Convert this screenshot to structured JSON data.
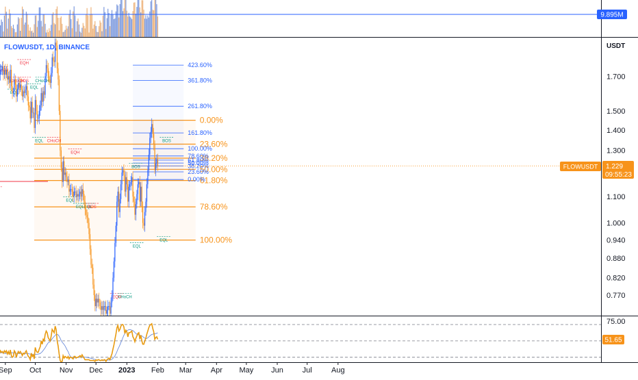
{
  "chart_data": {
    "type": "line",
    "symbol": {
      "pair": "FLOWUSDT",
      "interval": "1D",
      "exchange": "BINANCE"
    },
    "price_axis": {
      "unit": "USDT",
      "scale": "log",
      "ticks": [
        "1.700",
        "1.500",
        "1.400",
        "1.300",
        "1.200",
        "1.100",
        "1.000",
        "0.940",
        "0.880",
        "0.820",
        "0.770"
      ],
      "ylim": [
        0.715,
        1.95
      ]
    },
    "x_axis_labels": [
      "Sep",
      "Oct",
      "Nov",
      "Dec",
      "2023",
      "Feb",
      "Mar",
      "Apr",
      "May",
      "Jun",
      "Jul",
      "Aug"
    ],
    "last_price": {
      "symbol": "FLOWUSDT",
      "value": "1.229",
      "countdown": "09:55:23",
      "raw": 1.229
    },
    "volume": {
      "last_label": "9.895M"
    },
    "price_series": {
      "start_date": "2022-08-17",
      "close": [
        2.05,
        1.97,
        1.83,
        1.79,
        1.83,
        1.88,
        1.77,
        1.7,
        1.69,
        1.71,
        1.74,
        1.74,
        1.76,
        1.71,
        1.74,
        1.71,
        1.74,
        1.68,
        1.7,
        1.66,
        1.74,
        1.64,
        1.6,
        1.61,
        1.68,
        1.65,
        1.58,
        1.62,
        1.66,
        1.63,
        1.65,
        1.62,
        1.58,
        1.61,
        1.6,
        1.62,
        1.64,
        1.58,
        1.53,
        1.52,
        1.46,
        1.55,
        1.49,
        1.49,
        1.41,
        1.56,
        1.5,
        1.46,
        1.46,
        1.5,
        1.53,
        1.6,
        1.55,
        1.61,
        1.59,
        1.7,
        1.77,
        1.75,
        1.7,
        1.68,
        1.66,
        1.72,
        1.82,
        1.8,
        1.79,
        1.92,
        1.9,
        1.75,
        1.68,
        1.5,
        1.3,
        1.22,
        1.16,
        1.25,
        1.19,
        1.2,
        1.18,
        1.16,
        1.17,
        1.12,
        1.13,
        1.13,
        1.12,
        1.1,
        1.12,
        1.12,
        1.1,
        1.11,
        1.1,
        1.11,
        1.12,
        1.1,
        1.13,
        1.11,
        1.08,
        1.05,
        1.03,
        1.02,
        1.0,
        0.96,
        0.91,
        0.86,
        0.85,
        0.8,
        0.77,
        0.74,
        0.76,
        0.75,
        0.76,
        0.75,
        0.74,
        0.73,
        0.74,
        0.73,
        0.74,
        0.74,
        0.72,
        0.73,
        0.74,
        0.74,
        0.72,
        0.75,
        0.77,
        0.82,
        0.87,
        0.93,
        0.99,
        1.08,
        1.12,
        1.04,
        1.09,
        1.15,
        1.2,
        1.21,
        1.19,
        1.12,
        1.18,
        1.15,
        1.08,
        1.14,
        1.15,
        1.16,
        1.18,
        1.1,
        1.08,
        1.03,
        1.07,
        1.11,
        1.15,
        1.16,
        1.08,
        1.14,
        1.06,
        1.0,
        0.99,
        1.04,
        1.08,
        1.15,
        1.21,
        1.28,
        1.36,
        1.39,
        1.43,
        1.38,
        1.33,
        1.21,
        1.24,
        1.26,
        1.23
      ]
    },
    "rsi": {
      "ticks": [
        "75.00",
        "51.65"
      ],
      "last_value": "51.65",
      "levels": [
        70,
        50,
        30
      ],
      "ylim": [
        24,
        80
      ],
      "values": [
        48,
        42,
        30,
        30,
        35,
        38,
        32,
        31,
        32,
        34,
        38,
        36,
        37,
        35,
        38,
        36,
        38,
        34,
        37,
        33,
        39,
        32,
        30,
        31,
        38,
        36,
        30,
        34,
        37,
        35,
        37,
        35,
        32,
        35,
        34,
        36,
        38,
        34,
        31,
        30,
        27,
        35,
        31,
        33,
        28,
        42,
        38,
        36,
        36,
        40,
        43,
        50,
        46,
        52,
        50,
        58,
        62,
        60,
        54,
        52,
        50,
        56,
        64,
        62,
        60,
        68,
        64,
        50,
        44,
        34,
        26,
        24,
        25,
        32,
        29,
        31,
        30,
        29,
        31,
        28,
        30,
        30,
        29,
        28,
        31,
        31,
        29,
        30,
        30,
        31,
        32,
        30,
        33,
        31,
        29,
        27,
        27,
        27,
        27,
        27,
        26,
        26,
        26,
        26,
        26,
        25,
        27,
        26,
        27,
        27,
        26,
        26,
        27,
        26,
        27,
        27,
        25,
        27,
        28,
        29,
        27,
        31,
        34,
        40,
        45,
        52,
        58,
        66,
        69,
        62,
        64,
        68,
        70,
        70,
        67,
        59,
        63,
        61,
        55,
        60,
        60,
        61,
        62,
        55,
        53,
        49,
        53,
        56,
        59,
        60,
        52,
        57,
        50,
        46,
        46,
        50,
        53,
        58,
        62,
        66,
        69,
        70,
        71,
        65,
        61,
        52,
        54,
        55,
        52
      ]
    },
    "fib_large": {
      "start": "2022-09-30",
      "end": "2023-03-11",
      "levels": [
        {
          "label": "0.00%",
          "price": 1.45
        },
        {
          "label": "23.60%",
          "price": 1.33
        },
        {
          "label": "38.20%",
          "price": 1.264
        },
        {
          "label": "50.00%",
          "price": 1.214
        },
        {
          "label": "61.80%",
          "price": 1.166
        },
        {
          "label": "78.60%",
          "price": 1.06
        },
        {
          "label": "100.00%",
          "price": 0.94
        }
      ]
    },
    "fib_small": {
      "start": "2023-01-07",
      "end": "2023-02-27",
      "levels": [
        {
          "label": "423.60%",
          "price": 1.77
        },
        {
          "label": "361.80%",
          "price": 1.675
        },
        {
          "label": "261.80%",
          "price": 1.525
        },
        {
          "label": "161.80%",
          "price": 1.385
        },
        {
          "label": "100.00%",
          "price": 1.308
        },
        {
          "label": "78.60%",
          "price": 1.274
        },
        {
          "label": "61.80%",
          "price": 1.255
        },
        {
          "label": "50.00%",
          "price": 1.242
        },
        {
          "label": "38.20%",
          "price": 1.229
        },
        {
          "label": "23.60%",
          "price": 1.203
        },
        {
          "label": "0.00%",
          "price": 1.17
        }
      ]
    },
    "structure_labels": [
      {
        "text": "EQL",
        "date": "2022-08-22",
        "price": 1.73,
        "color": "#089981"
      },
      {
        "text": "CHoCH",
        "date": "2022-08-28",
        "price": 1.73,
        "color": "#f23645"
      },
      {
        "text": "EQH",
        "date": "2022-09-20",
        "price": 1.775,
        "color": "#f23645"
      },
      {
        "text": "CHoCH",
        "date": "2022-09-13",
        "price": 1.665,
        "color": "#f23645"
      },
      {
        "text": "BOS",
        "date": "2022-09-20",
        "price": 1.665,
        "color": "#f23645"
      },
      {
        "text": "CHoCH",
        "date": "2022-10-08",
        "price": 1.665,
        "color": "#089981"
      },
      {
        "text": "EQL",
        "date": "2022-09-30",
        "price": 1.625,
        "color": "#089981"
      },
      {
        "text": "EQL",
        "date": "2022-09-10",
        "price": 1.595,
        "color": "#089981"
      },
      {
        "text": "EQL",
        "date": "2022-10-05",
        "price": 1.34,
        "color": "#089981"
      },
      {
        "text": "CHoCH",
        "date": "2022-10-20",
        "price": 1.34,
        "color": "#f23645"
      },
      {
        "text": "EQH",
        "date": "2022-11-10",
        "price": 1.285,
        "color": "#f23645"
      },
      {
        "text": "EQL",
        "date": "2022-11-05",
        "price": 1.08,
        "color": "#089981"
      },
      {
        "text": "EQL",
        "date": "2022-11-15",
        "price": 1.055,
        "color": "#089981"
      },
      {
        "text": "EQL",
        "date": "2022-11-23",
        "price": 1.055,
        "color": "#089981"
      },
      {
        "text": "BOS",
        "date": "2022-11-27",
        "price": 1.055,
        "color": "#f23645"
      },
      {
        "text": "BOS",
        "date": "2022-08-22",
        "price": 1.12,
        "color": "#f23645"
      },
      {
        "text": "EQH",
        "date": "2022-12-22",
        "price": 0.762,
        "color": "#f23645"
      },
      {
        "text": "CHoCH",
        "date": "2022-12-30",
        "price": 0.762,
        "color": "#089981"
      },
      {
        "text": "BOS",
        "date": "2023-01-10",
        "price": 1.22,
        "color": "#089981"
      },
      {
        "text": "EQL",
        "date": "2023-01-11",
        "price": 0.915,
        "color": "#089981"
      },
      {
        "text": "EQL",
        "date": "2023-02-07",
        "price": 0.935,
        "color": "#089981"
      },
      {
        "text": "BOS",
        "date": "2023-02-10",
        "price": 1.34,
        "color": "#089981"
      }
    ]
  }
}
